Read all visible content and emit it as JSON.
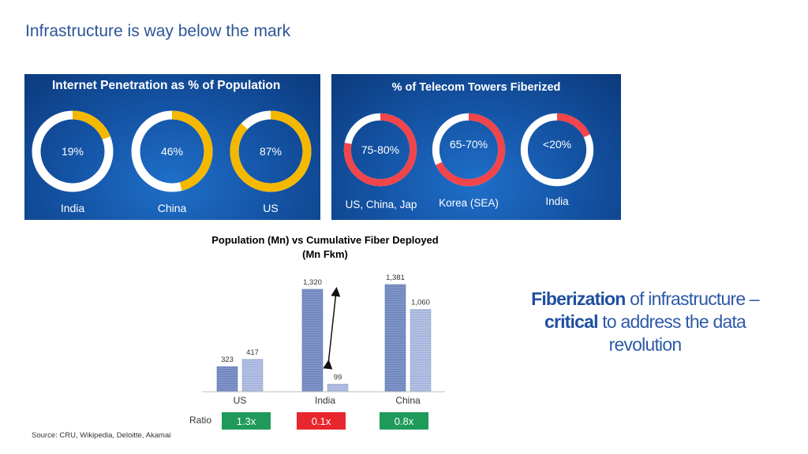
{
  "slide": {
    "title": "Infrastructure  is way below the mark",
    "source": "Source: CRU, Wikipedia, Deloitte, Akamai"
  },
  "internet_panel": {
    "title": "Internet Penetration as % of Population",
    "items": [
      {
        "label": "India",
        "value_text": "19%",
        "fraction": 0.19
      },
      {
        "label": "China",
        "value_text": "46%",
        "fraction": 0.46
      },
      {
        "label": "US",
        "value_text": "87%",
        "fraction": 0.87
      }
    ],
    "fill_color": "#f5b800",
    "track_color": "#ffffff"
  },
  "towers_panel": {
    "title": "% of Telecom Towers Fiberized",
    "items": [
      {
        "label": "US, China, Jap",
        "value_text": "75-80%",
        "fraction": 0.78
      },
      {
        "label": "Korea (SEA)",
        "value_text": "65-70%",
        "fraction": 0.68
      },
      {
        "label": "India",
        "value_text": "<20%",
        "fraction": 0.18
      }
    ],
    "fill_color": "#f0454b",
    "track_color": "#ffffff"
  },
  "chart_data": {
    "type": "bar",
    "title": "Population (Mn) vs Cumulative Fiber Deployed (Mn Fkm)",
    "categories": [
      "US",
      "India",
      "China"
    ],
    "series": [
      {
        "values": [
          323,
          1320,
          1381
        ]
      },
      {
        "values": [
          417,
          99,
          1060
        ]
      }
    ],
    "value_labels": [
      [
        "323",
        "1,320",
        "1,381"
      ],
      [
        "417",
        "99",
        "1,060"
      ]
    ],
    "ratio_label": "Ratio",
    "ratios": [
      {
        "text": "1.3x",
        "color": "#1f9a5b"
      },
      {
        "text": "0.1x",
        "color": "#e8262d"
      },
      {
        "text": "0.8x",
        "color": "#1f9a5b"
      }
    ],
    "colors": {
      "population": "#7f94c8",
      "fiber": "#b3c0e2"
    }
  },
  "callout": {
    "part1": "Fiberization",
    "part2": " of infrastructure – ",
    "part3": "critical",
    "part4": " to address the data revolution"
  }
}
